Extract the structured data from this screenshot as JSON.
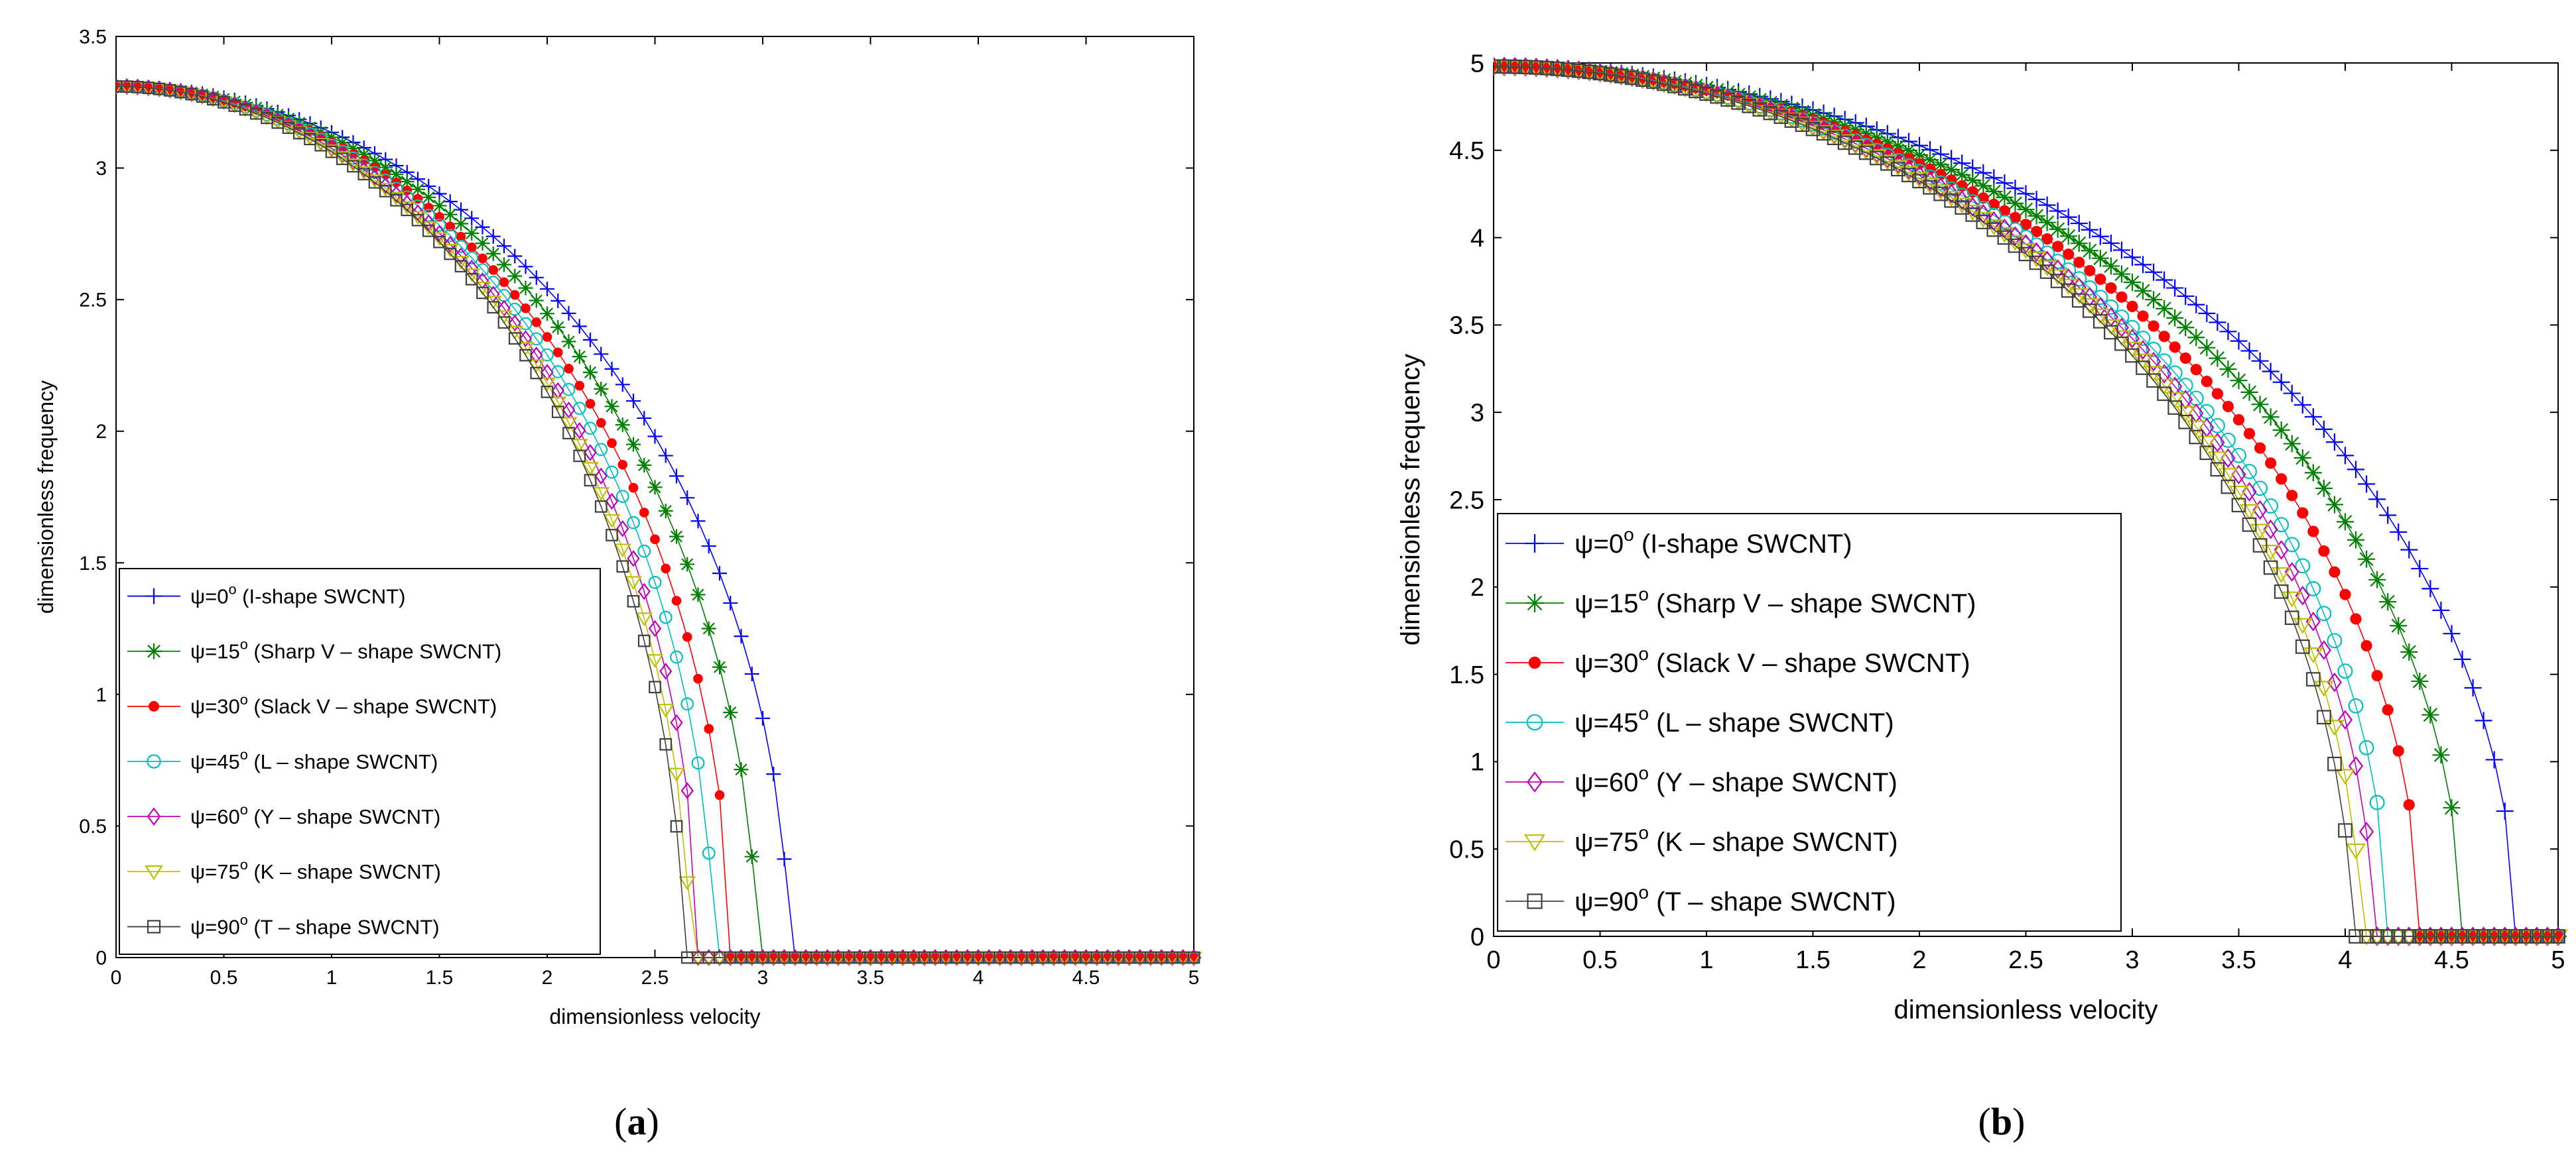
{
  "panels": [
    {
      "caption_letter": "a",
      "chart_data": {
        "type": "line",
        "xlabel": "dimensionless velocity",
        "ylabel": "dimensionless frequency",
        "xlim": [
          0,
          5
        ],
        "ylim": [
          0,
          3.5
        ],
        "xticks": [
          "0",
          "0.5",
          "1",
          "1.5",
          "2",
          "2.5",
          "3",
          "3.5",
          "4",
          "4.5",
          "5"
        ],
        "yticks": [
          "0",
          "0.5",
          "1",
          "1.5",
          "2",
          "2.5",
          "3",
          "3.5"
        ],
        "f0": 3.31,
        "legend_position": "bottom-left",
        "series": [
          {
            "prefix": "ψ=0",
            "sup": "o",
            "desc": " (I-shape SWCNT)",
            "color": "#0000ff",
            "marker": "plus",
            "crit": 3.12
          },
          {
            "prefix": "ψ=15",
            "sup": "o",
            "desc": " (Sharp V – shape SWCNT)",
            "color": "#008000",
            "marker": "star",
            "crit": 2.97
          },
          {
            "prefix": "ψ=30",
            "sup": "o",
            "desc": " (Slack V – shape SWCNT)",
            "color": "#ff0000",
            "marker": "dot",
            "crit": 2.85
          },
          {
            "prefix": "ψ=45",
            "sup": "o",
            "desc": " (L – shape SWCNT)",
            "color": "#00bfbf",
            "marker": "circle",
            "crit": 2.77
          },
          {
            "prefix": "ψ=60",
            "sup": "o",
            "desc": " (Y – shape SWCNT)",
            "color": "#bf00bf",
            "marker": "diamond",
            "crit": 2.7
          },
          {
            "prefix": "ψ=75",
            "sup": "o",
            "desc": " (K – shape SWCNT)",
            "color": "#bfbf00",
            "marker": "tri",
            "crit": 2.66
          },
          {
            "prefix": "ψ=90",
            "sup": "o",
            "desc": " (T – shape SWCNT)",
            "color": "#404040",
            "marker": "square",
            "crit": 2.63
          }
        ]
      }
    },
    {
      "caption_letter": "b",
      "chart_data": {
        "type": "line",
        "xlabel": "dimensionless velocity",
        "ylabel": "dimensionless frequency",
        "xlim": [
          0,
          5
        ],
        "ylim": [
          0,
          5
        ],
        "xticks": [
          "0",
          "0.5",
          "1",
          "1.5",
          "2",
          "2.5",
          "3",
          "3.5",
          "4",
          "4.5",
          "5"
        ],
        "yticks": [
          "0",
          "0.5",
          "1",
          "1.5",
          "2",
          "2.5",
          "3",
          "3.5",
          "4",
          "4.5",
          "5"
        ],
        "f0": 4.98,
        "legend_position": "bottom-left",
        "series": [
          {
            "prefix": "ψ=0",
            "sup": "o",
            "desc": " (I-shape SWCNT)",
            "color": "#0000ff",
            "marker": "plus",
            "crit": 4.8
          },
          {
            "prefix": "ψ=15",
            "sup": "o",
            "desc": " (Sharp V – shape SWCNT)",
            "color": "#008000",
            "marker": "star",
            "crit": 4.55
          },
          {
            "prefix": "ψ=30",
            "sup": "o",
            "desc": " (Slack V – shape SWCNT)",
            "color": "#ff0000",
            "marker": "dot",
            "crit": 4.35
          },
          {
            "prefix": "ψ=45",
            "sup": "o",
            "desc": " (L – shape SWCNT)",
            "color": "#00bfbf",
            "marker": "circle",
            "crit": 4.2
          },
          {
            "prefix": "ψ=60",
            "sup": "o",
            "desc": " (Y – shape SWCNT)",
            "color": "#bf00bf",
            "marker": "diamond",
            "crit": 4.13
          },
          {
            "prefix": "ψ=75",
            "sup": "o",
            "desc": " (K – shape SWCNT)",
            "color": "#bfbf00",
            "marker": "tri",
            "crit": 4.07
          },
          {
            "prefix": "ψ=90",
            "sup": "o",
            "desc": " (T – shape SWCNT)",
            "color": "#404040",
            "marker": "square",
            "crit": 4.03
          }
        ]
      }
    }
  ]
}
